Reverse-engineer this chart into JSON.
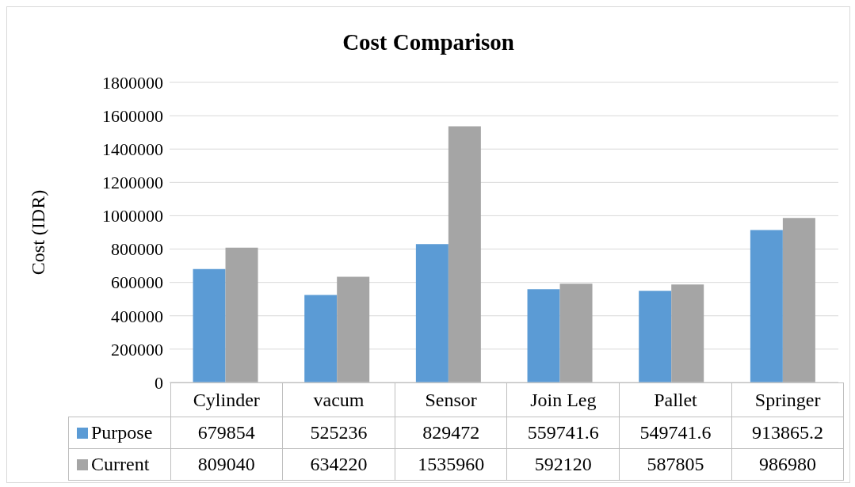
{
  "chart_data": {
    "type": "bar",
    "title": "Cost Comparison",
    "ylabel": "Cost (IDR)",
    "categories": [
      "Cylinder",
      "vacum",
      "Sensor",
      "Join Leg",
      "Pallet",
      "Springer"
    ],
    "series": [
      {
        "name": "Purpose",
        "color": "#5b9bd5",
        "values": [
          679854,
          525236,
          829472,
          559741.6,
          549741.6,
          913865.2
        ]
      },
      {
        "name": "Current",
        "color": "#a5a5a5",
        "values": [
          809040,
          634220,
          1535960,
          592120,
          587805,
          986980
        ]
      }
    ],
    "ylim": [
      0,
      1800000
    ],
    "yticks": [
      0,
      200000,
      400000,
      600000,
      800000,
      1000000,
      1200000,
      1400000,
      1600000,
      1800000
    ],
    "grid": "y",
    "legend": "bottom",
    "data_labels": true
  }
}
